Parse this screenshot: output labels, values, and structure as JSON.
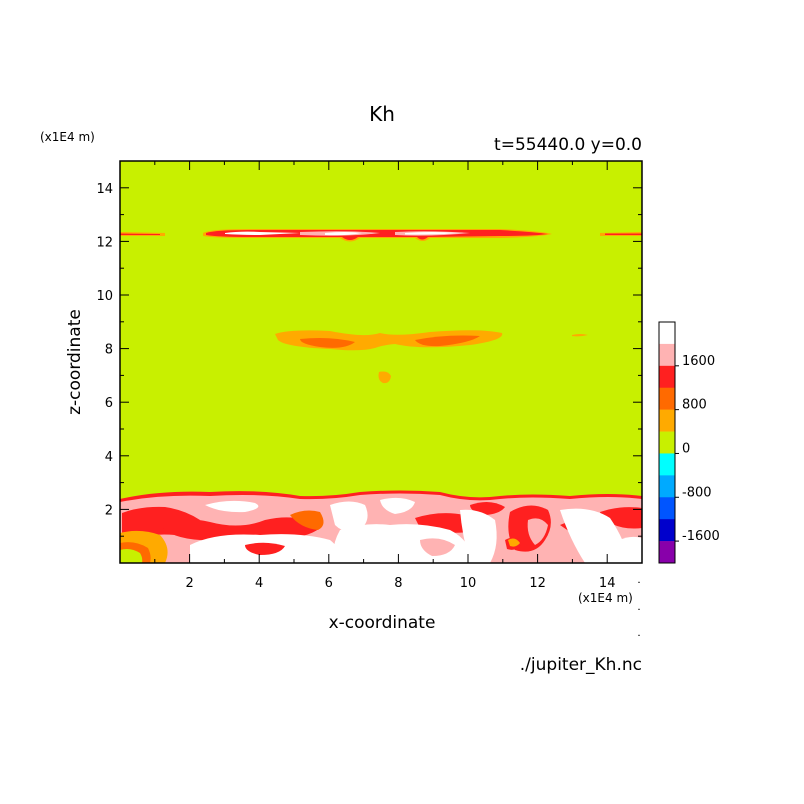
{
  "chart_data": {
    "type": "heatmap",
    "title": "Kh",
    "subtitle": "t=55440.0 y=0.0",
    "xlabel": "x-coordinate",
    "ylabel": "z-coordinate",
    "x_unit": "(x1E4 m)",
    "y_unit": "(x1E4 m)",
    "source": "./jupiter_Kh.nc",
    "xlim": [
      0,
      15
    ],
    "ylim": [
      0,
      15
    ],
    "xticks": [
      2,
      4,
      6,
      8,
      10,
      12,
      14
    ],
    "yticks": [
      2,
      4,
      6,
      8,
      10,
      12,
      14
    ],
    "background_level": 0,
    "colorbar": {
      "labels": [
        1600,
        800,
        0,
        -800,
        -1600
      ],
      "levels": [
        {
          "range": ">2000",
          "color": "#ffffff"
        },
        {
          "range": "1600 to 2000",
          "color": "#ffb3b3"
        },
        {
          "range": "1200 to 1600",
          "color": "#ff2020"
        },
        {
          "range": "800 to 1200",
          "color": "#ff6a00"
        },
        {
          "range": "400 to 800",
          "color": "#ffaa00"
        },
        {
          "range": "0 to 400",
          "color": "#c8f000"
        },
        {
          "range": "-400 to 0",
          "color": "#00ffff"
        },
        {
          "range": "-800 to -400",
          "color": "#00aaff"
        },
        {
          "range": "-1200 to -800",
          "color": "#0055ff"
        },
        {
          "range": "-1600 to -1200",
          "color": "#0000cc"
        },
        {
          "range": "-2000 to -1600",
          "color": "#8800aa"
        }
      ]
    },
    "regions": [
      {
        "name": "upper-layer-band",
        "z": 12.1,
        "x_range": [
          0,
          15
        ],
        "level": "1200 to 1600",
        "note": "thin band with white/pink core near x=3-11"
      },
      {
        "name": "mid-level-band",
        "z": 8.3,
        "x_range": [
          4.5,
          10.8
        ],
        "level": "400 to 1600"
      },
      {
        "name": "small-blob",
        "x": 7.6,
        "z": 6.9,
        "level": "400 to 800"
      },
      {
        "name": "boundary-layer",
        "z_range": [
          0,
          2.6
        ],
        "x_range": [
          0,
          15
        ],
        "level": "1200 to >2000"
      }
    ]
  }
}
